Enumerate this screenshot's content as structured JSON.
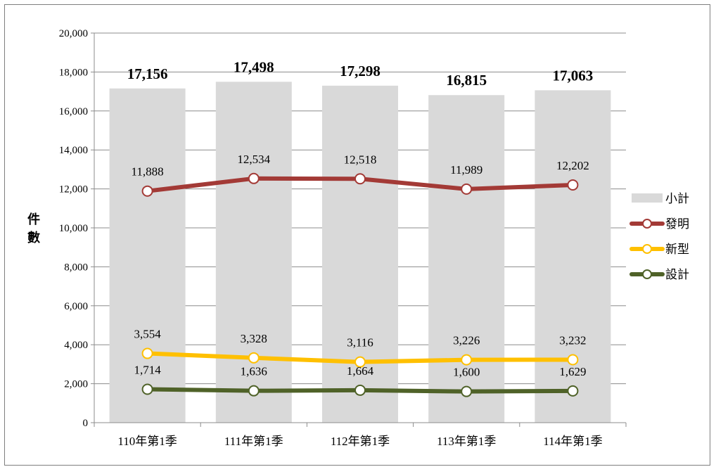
{
  "chart_data": {
    "type": "bar+line",
    "categories": [
      "110年第1季",
      "111年第1季",
      "112年第1季",
      "113年第1季",
      "114年第1季"
    ],
    "ylabel": "件數",
    "ylim": [
      0,
      20000
    ],
    "yticks": [
      "0",
      "2,000",
      "4,000",
      "6,000",
      "8,000",
      "10,000",
      "12,000",
      "14,000",
      "16,000",
      "18,000",
      "20,000"
    ],
    "ytick_values": [
      0,
      2000,
      4000,
      6000,
      8000,
      10000,
      12000,
      14000,
      16000,
      18000,
      20000
    ],
    "grid": true,
    "legend_position": "right",
    "bar_series": {
      "name": "小計",
      "color": "#d9d9d9",
      "values": [
        17156,
        17498,
        17298,
        16815,
        17063
      ],
      "labels": [
        "17,156",
        "17,498",
        "17,298",
        "16,815",
        "17,063"
      ]
    },
    "line_series": [
      {
        "name": "發明",
        "color": "#a33a36",
        "values": [
          11888,
          12534,
          12518,
          11989,
          12202
        ],
        "labels": [
          "11,888",
          "12,534",
          "12,518",
          "11,989",
          "12,202"
        ]
      },
      {
        "name": "新型",
        "color": "#ffc000",
        "values": [
          3554,
          3328,
          3116,
          3226,
          3232
        ],
        "labels": [
          "3,554",
          "3,328",
          "3,116",
          "3,226",
          "3,232"
        ]
      },
      {
        "name": "設計",
        "color": "#4f6228",
        "values": [
          1714,
          1636,
          1664,
          1600,
          1629
        ],
        "labels": [
          "1,714",
          "1,636",
          "1,664",
          "1,600",
          "1,629"
        ]
      }
    ]
  }
}
